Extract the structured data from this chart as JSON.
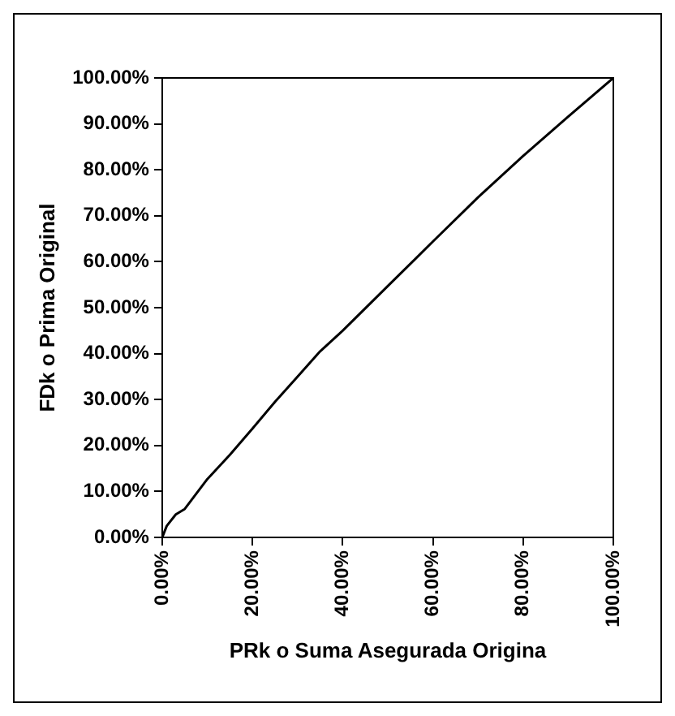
{
  "chart_data": {
    "type": "line",
    "xlabel": "PRk o Suma Asegurada Origina",
    "ylabel": "FDk o Prima Original",
    "x": [
      0,
      1,
      3,
      5,
      10,
      15,
      20,
      25,
      30,
      35,
      40,
      50,
      60,
      70,
      80,
      90,
      100
    ],
    "series": [
      {
        "color": "#000000",
        "values": [
          0,
          2.5,
          5,
          6.2,
          12.7,
          18,
          23.7,
          29.5,
          35,
          40.5,
          45,
          54.7,
          64.4,
          74,
          83,
          91.6,
          100
        ]
      }
    ],
    "xlim": [
      0,
      100
    ],
    "ylim": [
      0,
      100
    ],
    "xticks": [
      {
        "value": 0,
        "label": "0.00%"
      },
      {
        "value": 20,
        "label": "20.00%"
      },
      {
        "value": 40,
        "label": "40.00%"
      },
      {
        "value": 60,
        "label": "60.00%"
      },
      {
        "value": 80,
        "label": "80.00%"
      },
      {
        "value": 100,
        "label": "100.00%"
      }
    ],
    "yticks": [
      {
        "value": 0,
        "label": "0.00%"
      },
      {
        "value": 10,
        "label": "10.00%"
      },
      {
        "value": 20,
        "label": "20.00%"
      },
      {
        "value": 30,
        "label": "30.00%"
      },
      {
        "value": 40,
        "label": "40.00%"
      },
      {
        "value": 50,
        "label": "50.00%"
      },
      {
        "value": 60,
        "label": "60.00%"
      },
      {
        "value": 70,
        "label": "70.00%"
      },
      {
        "value": 80,
        "label": "80.00%"
      },
      {
        "value": 90,
        "label": "90.00%"
      },
      {
        "value": 100,
        "label": "100.00%"
      }
    ],
    "grid": false,
    "legend": false,
    "marker": "none",
    "line_style": "solid"
  }
}
